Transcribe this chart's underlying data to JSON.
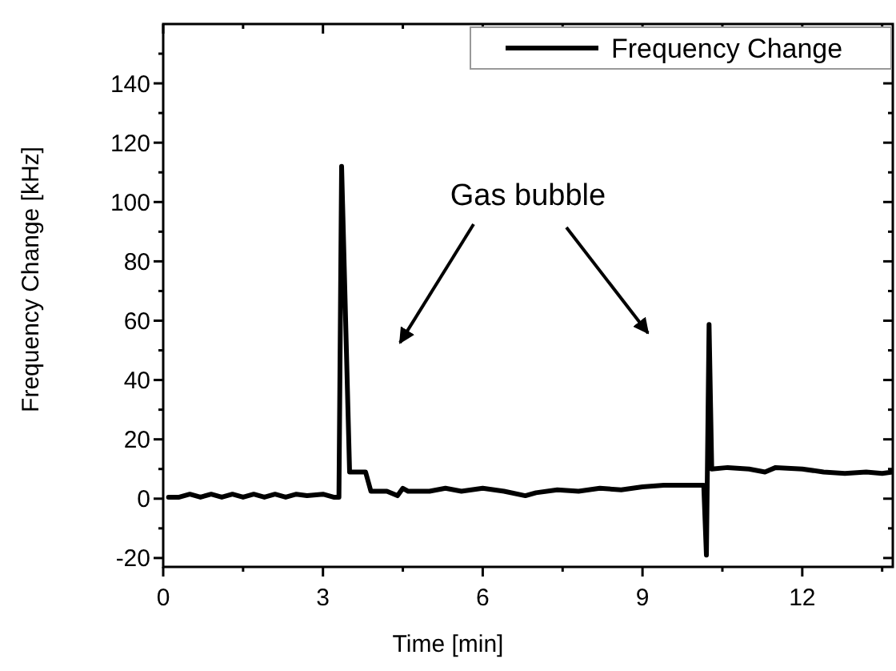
{
  "chart_data": {
    "type": "line",
    "xlabel": "Time [min]",
    "ylabel": "Frequency Change [kHz]",
    "legend": "top right",
    "grid": false,
    "marker": "none",
    "line_style": "solid",
    "xlim": [
      0,
      13.7
    ],
    "ylim": [
      -23,
      160
    ],
    "xticks": [
      0,
      {
        "value": 1.5,
        "label": null
      },
      3,
      {
        "value": 4.5,
        "label": null
      },
      6,
      {
        "value": 7.5,
        "label": null
      },
      9,
      {
        "value": 10.5,
        "label": null
      },
      12,
      {
        "value": 13.5,
        "label": null
      }
    ],
    "yticks": [
      -20,
      {
        "value": -10,
        "label": null
      },
      0,
      {
        "value": 10,
        "label": null
      },
      20,
      {
        "value": 30,
        "label": null
      },
      40,
      {
        "value": 50,
        "label": null
      },
      60,
      {
        "value": 70,
        "label": null
      },
      80,
      {
        "value": 90,
        "label": null
      },
      100,
      {
        "value": 110,
        "label": null
      },
      120,
      {
        "value": 130,
        "label": null
      },
      140,
      {
        "value": 150,
        "label": null
      }
    ],
    "annotations": [
      "Gas bubble"
    ],
    "series": [
      {
        "name": "Frequency Change",
        "color": "#000000",
        "x": [
          0.1,
          0.3,
          0.5,
          0.7,
          0.9,
          1.1,
          1.3,
          1.5,
          1.7,
          1.9,
          2.1,
          2.3,
          2.5,
          2.7,
          3.0,
          3.2,
          3.3,
          3.35,
          3.5,
          3.8,
          3.9,
          4.2,
          4.4,
          4.5,
          4.6,
          5.0,
          5.3,
          5.6,
          6.0,
          6.4,
          6.8,
          7.0,
          7.4,
          7.8,
          8.2,
          8.6,
          9.0,
          9.4,
          9.8,
          10.15,
          10.2,
          10.25,
          10.3,
          10.6,
          11.0,
          11.3,
          11.5,
          12.0,
          12.4,
          12.8,
          13.2,
          13.5,
          13.7
        ],
        "values": [
          0.5,
          0.5,
          1.5,
          0.5,
          1.5,
          0.5,
          1.5,
          0.5,
          1.5,
          0.5,
          1.5,
          0.5,
          1.5,
          1,
          1.5,
          0.5,
          0.5,
          112,
          9,
          9,
          2.5,
          2.5,
          1,
          3.5,
          2.5,
          2.5,
          3.5,
          2.5,
          3.5,
          2.5,
          1,
          2,
          3,
          2.5,
          3.5,
          3,
          4,
          4.5,
          4.5,
          4.5,
          -19,
          58.7,
          10,
          10.5,
          10,
          9,
          10.5,
          10,
          9,
          8.5,
          9,
          8.5,
          9
        ]
      }
    ]
  }
}
